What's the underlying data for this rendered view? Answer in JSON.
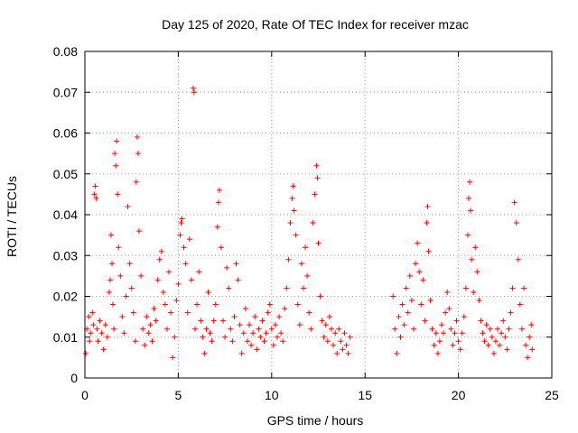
{
  "chart_data": {
    "type": "scatter",
    "title": "Day 125 of 2020, Rate Of TEC Index for receiver mzac",
    "xlabel": "GPS time / hours",
    "ylabel": "ROTI / TECUs",
    "xlim": [
      0,
      25
    ],
    "ylim": [
      0,
      0.08
    ],
    "xticks": [
      0,
      5,
      10,
      15,
      20,
      25
    ],
    "xtick_labels": [
      "0",
      "5",
      "10",
      "15",
      "20",
      "25"
    ],
    "yticks": [
      0,
      0.01,
      0.02,
      0.03,
      0.04,
      0.05,
      0.06,
      0.07,
      0.08
    ],
    "ytick_labels": [
      "0",
      "0.01",
      "0.02",
      "0.03",
      "0.04",
      "0.05",
      "0.06",
      "0.07",
      "0.08"
    ],
    "grid": true,
    "marker": "+",
    "color": "#ff0000",
    "series": [
      {
        "points": [
          [
            0.05,
            0.006
          ],
          [
            0.1,
            0.012
          ],
          [
            0.2,
            0.015
          ],
          [
            0.25,
            0.009
          ],
          [
            0.3,
            0.011
          ],
          [
            0.4,
            0.016
          ],
          [
            0.45,
            0.013
          ],
          [
            0.5,
            0.045
          ],
          [
            0.55,
            0.047
          ],
          [
            0.6,
            0.044
          ],
          [
            0.65,
            0.012
          ],
          [
            0.7,
            0.009
          ],
          [
            0.8,
            0.014
          ],
          [
            0.9,
            0.011
          ],
          [
            1.0,
            0.007
          ],
          [
            1.1,
            0.013
          ],
          [
            1.2,
            0.01
          ],
          [
            1.3,
            0.021
          ],
          [
            1.35,
            0.024
          ],
          [
            1.4,
            0.035
          ],
          [
            1.45,
            0.028
          ],
          [
            1.5,
            0.018
          ],
          [
            1.55,
            0.012
          ],
          [
            1.6,
            0.055
          ],
          [
            1.65,
            0.052
          ],
          [
            1.7,
            0.058
          ],
          [
            1.75,
            0.045
          ],
          [
            1.8,
            0.032
          ],
          [
            1.9,
            0.025
          ],
          [
            2.0,
            0.015
          ],
          [
            2.1,
            0.011
          ],
          [
            2.2,
            0.02
          ],
          [
            2.3,
            0.042
          ],
          [
            2.4,
            0.028
          ],
          [
            2.5,
            0.022
          ],
          [
            2.6,
            0.016
          ],
          [
            2.7,
            0.009
          ],
          [
            2.75,
            0.048
          ],
          [
            2.8,
            0.059
          ],
          [
            2.85,
            0.055
          ],
          [
            2.9,
            0.036
          ],
          [
            3.0,
            0.025
          ],
          [
            3.1,
            0.012
          ],
          [
            3.2,
            0.008
          ],
          [
            3.3,
            0.015
          ],
          [
            3.4,
            0.011
          ],
          [
            3.5,
            0.013
          ],
          [
            3.6,
            0.009
          ],
          [
            3.7,
            0.017
          ],
          [
            3.8,
            0.014
          ],
          [
            3.9,
            0.024
          ],
          [
            4.0,
            0.029
          ],
          [
            4.1,
            0.031
          ],
          [
            4.2,
            0.021
          ],
          [
            4.3,
            0.018
          ],
          [
            4.4,
            0.012
          ],
          [
            4.5,
            0.026
          ],
          [
            4.6,
            0.016
          ],
          [
            4.7,
            0.005
          ],
          [
            4.8,
            0.01
          ],
          [
            4.9,
            0.019
          ],
          [
            5.0,
            0.023
          ],
          [
            5.1,
            0.035
          ],
          [
            5.15,
            0.038
          ],
          [
            5.2,
            0.039
          ],
          [
            5.3,
            0.032
          ],
          [
            5.4,
            0.028
          ],
          [
            5.5,
            0.016
          ],
          [
            5.6,
            0.034
          ],
          [
            5.7,
            0.024
          ],
          [
            5.8,
            0.071
          ],
          [
            5.85,
            0.07
          ],
          [
            5.9,
            0.012
          ],
          [
            6.0,
            0.018
          ],
          [
            6.1,
            0.026
          ],
          [
            6.2,
            0.014
          ],
          [
            6.3,
            0.01
          ],
          [
            6.4,
            0.006
          ],
          [
            6.5,
            0.012
          ],
          [
            6.6,
            0.021
          ],
          [
            6.7,
            0.011
          ],
          [
            6.8,
            0.009
          ],
          [
            6.9,
            0.014
          ],
          [
            7.0,
            0.018
          ],
          [
            7.1,
            0.037
          ],
          [
            7.15,
            0.043
          ],
          [
            7.2,
            0.046
          ],
          [
            7.3,
            0.032
          ],
          [
            7.4,
            0.014
          ],
          [
            7.5,
            0.01
          ],
          [
            7.6,
            0.027
          ],
          [
            7.7,
            0.022
          ],
          [
            7.8,
            0.012
          ],
          [
            7.9,
            0.009
          ],
          [
            8.0,
            0.015
          ],
          [
            8.1,
            0.028
          ],
          [
            8.2,
            0.024
          ],
          [
            8.3,
            0.013
          ],
          [
            8.4,
            0.006
          ],
          [
            8.5,
            0.011
          ],
          [
            8.6,
            0.017
          ],
          [
            8.7,
            0.009
          ],
          [
            8.8,
            0.013
          ],
          [
            8.9,
            0.008
          ],
          [
            9.0,
            0.011
          ],
          [
            9.1,
            0.015
          ],
          [
            9.2,
            0.007
          ],
          [
            9.3,
            0.012
          ],
          [
            9.4,
            0.01
          ],
          [
            9.5,
            0.014
          ],
          [
            9.6,
            0.009
          ],
          [
            9.7,
            0.011
          ],
          [
            9.8,
            0.016
          ],
          [
            9.9,
            0.018
          ],
          [
            10.0,
            0.012
          ],
          [
            10.1,
            0.008
          ],
          [
            10.2,
            0.013
          ],
          [
            10.3,
            0.01
          ],
          [
            10.4,
            0.015
          ],
          [
            10.5,
            0.011
          ],
          [
            10.6,
            0.009
          ],
          [
            10.7,
            0.017
          ],
          [
            10.8,
            0.022
          ],
          [
            10.9,
            0.029
          ],
          [
            11.0,
            0.038
          ],
          [
            11.1,
            0.044
          ],
          [
            11.15,
            0.047
          ],
          [
            11.2,
            0.041
          ],
          [
            11.3,
            0.035
          ],
          [
            11.4,
            0.018
          ],
          [
            11.5,
            0.013
          ],
          [
            11.6,
            0.028
          ],
          [
            11.7,
            0.022
          ],
          [
            11.8,
            0.032
          ],
          [
            11.9,
            0.025
          ],
          [
            12.0,
            0.016
          ],
          [
            12.1,
            0.012
          ],
          [
            12.2,
            0.038
          ],
          [
            12.3,
            0.045
          ],
          [
            12.4,
            0.052
          ],
          [
            12.45,
            0.049
          ],
          [
            12.5,
            0.033
          ],
          [
            12.6,
            0.02
          ],
          [
            12.7,
            0.014
          ],
          [
            12.8,
            0.01
          ],
          [
            12.9,
            0.013
          ],
          [
            13.0,
            0.009
          ],
          [
            13.1,
            0.015
          ],
          [
            13.2,
            0.012
          ],
          [
            13.3,
            0.008
          ],
          [
            13.4,
            0.011
          ],
          [
            13.5,
            0.006
          ],
          [
            13.6,
            0.012
          ],
          [
            13.7,
            0.009
          ],
          [
            13.8,
            0.007
          ],
          [
            13.9,
            0.011
          ],
          [
            14.0,
            0.008
          ],
          [
            14.1,
            0.006
          ],
          [
            14.2,
            0.01
          ],
          [
            16.5,
            0.02
          ],
          [
            16.6,
            0.012
          ],
          [
            16.7,
            0.006
          ],
          [
            16.8,
            0.015
          ],
          [
            16.9,
            0.01
          ],
          [
            17.0,
            0.018
          ],
          [
            17.1,
            0.013
          ],
          [
            17.2,
            0.022
          ],
          [
            17.3,
            0.016
          ],
          [
            17.4,
            0.025
          ],
          [
            17.5,
            0.019
          ],
          [
            17.6,
            0.012
          ],
          [
            17.7,
            0.028
          ],
          [
            17.8,
            0.033
          ],
          [
            17.9,
            0.026
          ],
          [
            18.0,
            0.018
          ],
          [
            18.1,
            0.024
          ],
          [
            18.2,
            0.014
          ],
          [
            18.3,
            0.038
          ],
          [
            18.35,
            0.042
          ],
          [
            18.4,
            0.031
          ],
          [
            18.5,
            0.019
          ],
          [
            18.6,
            0.012
          ],
          [
            18.7,
            0.008
          ],
          [
            18.8,
            0.011
          ],
          [
            18.9,
            0.006
          ],
          [
            19.0,
            0.009
          ],
          [
            19.1,
            0.013
          ],
          [
            19.2,
            0.011
          ],
          [
            19.3,
            0.016
          ],
          [
            19.4,
            0.021
          ],
          [
            19.5,
            0.017
          ],
          [
            19.6,
            0.012
          ],
          [
            19.7,
            0.008
          ],
          [
            19.8,
            0.011
          ],
          [
            19.9,
            0.014
          ],
          [
            20.0,
            0.009
          ],
          [
            20.1,
            0.007
          ],
          [
            20.2,
            0.011
          ],
          [
            20.3,
            0.015
          ],
          [
            20.4,
            0.022
          ],
          [
            20.5,
            0.035
          ],
          [
            20.55,
            0.044
          ],
          [
            20.6,
            0.048
          ],
          [
            20.65,
            0.041
          ],
          [
            20.7,
            0.029
          ],
          [
            20.8,
            0.021
          ],
          [
            20.9,
            0.032
          ],
          [
            21.0,
            0.026
          ],
          [
            21.1,
            0.019
          ],
          [
            21.2,
            0.014
          ],
          [
            21.3,
            0.011
          ],
          [
            21.4,
            0.009
          ],
          [
            21.5,
            0.013
          ],
          [
            21.6,
            0.008
          ],
          [
            21.7,
            0.012
          ],
          [
            21.8,
            0.01
          ],
          [
            21.9,
            0.006
          ],
          [
            22.0,
            0.009
          ],
          [
            22.1,
            0.012
          ],
          [
            22.2,
            0.008
          ],
          [
            22.3,
            0.011
          ],
          [
            22.4,
            0.014
          ],
          [
            22.5,
            0.01
          ],
          [
            22.6,
            0.007
          ],
          [
            22.7,
            0.012
          ],
          [
            22.8,
            0.016
          ],
          [
            22.9,
            0.022
          ],
          [
            23.0,
            0.043
          ],
          [
            23.1,
            0.038
          ],
          [
            23.2,
            0.029
          ],
          [
            23.3,
            0.018
          ],
          [
            23.4,
            0.012
          ],
          [
            23.5,
            0.022
          ],
          [
            23.6,
            0.008
          ],
          [
            23.7,
            0.005
          ],
          [
            23.8,
            0.01
          ],
          [
            23.9,
            0.013
          ],
          [
            23.95,
            0.007
          ]
        ]
      }
    ]
  }
}
